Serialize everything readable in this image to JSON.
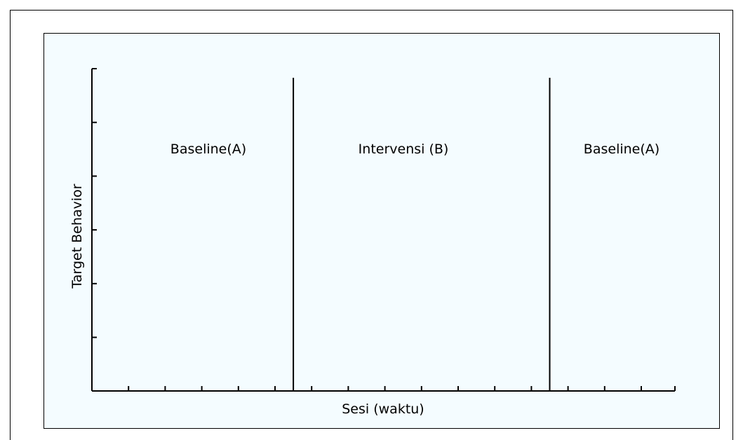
{
  "chart_data": {
    "type": "line",
    "title": "",
    "xlabel": "Sesi (waktu)",
    "ylabel": "Target Behavior",
    "x_tick_count": 16,
    "y_tick_count": 6,
    "phases": [
      {
        "label": "Baseline(A)",
        "start": 0,
        "end": 5.5
      },
      {
        "label": "Intervensi (B)",
        "start": 5.5,
        "end": 12.5
      },
      {
        "label": "Baseline(A)",
        "start": 12.5,
        "end": 16
      }
    ],
    "xlim": [
      0,
      16
    ],
    "grid": false,
    "series": []
  },
  "colors": {
    "panel_background": "#f4fcff",
    "axis": "#000000"
  }
}
